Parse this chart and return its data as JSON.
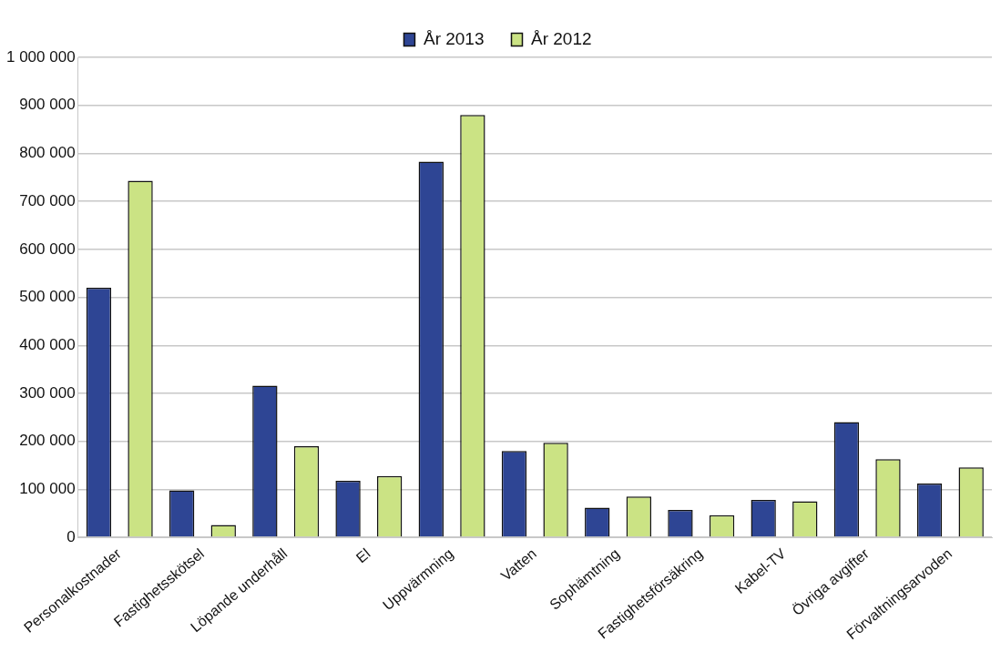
{
  "chart_data": {
    "type": "bar",
    "categories": [
      "Personalkostnader",
      "Fastighetsskötsel",
      "Löpande underhåll",
      "El",
      "Uppvärmning",
      "Vatten",
      "Sophämtning",
      "Fastighetsförsäkring",
      "Kabel-TV",
      "Övriga avgifter",
      "Förvaltningsarvoden"
    ],
    "series": [
      {
        "name": "År 2013",
        "color": "#2e4594",
        "values": [
          520000,
          98000,
          316000,
          118000,
          783000,
          180000,
          62000,
          57000,
          78000,
          240000,
          112000
        ]
      },
      {
        "name": "År 2012",
        "color": "#cbe384",
        "values": [
          743000,
          26000,
          190000,
          128000,
          880000,
          197000,
          85000,
          46000,
          75000,
          163000,
          146000
        ]
      }
    ],
    "ylim": [
      0,
      1000000
    ],
    "yticks": [
      {
        "value": 0,
        "label": "0"
      },
      {
        "value": 100000,
        "label": "100 000"
      },
      {
        "value": 200000,
        "label": "200 000"
      },
      {
        "value": 300000,
        "label": "300 000"
      },
      {
        "value": 400000,
        "label": "400 000"
      },
      {
        "value": 500000,
        "label": "500 000"
      },
      {
        "value": 600000,
        "label": "600 000"
      },
      {
        "value": 700000,
        "label": "700 000"
      },
      {
        "value": 800000,
        "label": "800 000"
      },
      {
        "value": 900000,
        "label": "900 000"
      },
      {
        "value": 1000000,
        "label": "1 000 000"
      }
    ],
    "grid": "y",
    "legend": "top"
  }
}
